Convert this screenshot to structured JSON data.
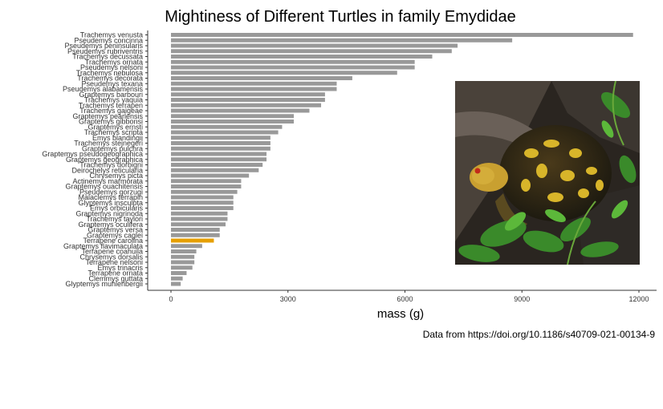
{
  "chart_data": {
    "type": "bar",
    "orientation": "horizontal",
    "title": "Mightiness of Different Turtles in family Emydidae",
    "xlabel": "mass (g)",
    "ylabel": "",
    "caption": "Data from https://doi.org/10.1186/s40709-021-00134-9",
    "xlim": [
      0,
      12400
    ],
    "xticks": [
      0,
      3000,
      6000,
      9000,
      12000
    ],
    "grid": false,
    "legend": "none",
    "bar_color": "#999999",
    "highlight_color": "#E69F00",
    "highlight_category": "Terrapene carolina",
    "inset_photo": "box-turtle-photo",
    "categories": [
      "Trachemys venusta",
      "Pseudemys concinna",
      "Pseudemys peninsularis",
      "Pseudemys rubriventris",
      "Trachemys decussata",
      "Trachemys ornata",
      "Pseudemys nelsoni",
      "Trachemys nebulosa",
      "Trachemys decorata",
      "Pseudemys texana",
      "Pseudemys alabamensis",
      "Graptemys barbouri",
      "Trachemys yaquia",
      "Trachemys terrapen",
      "Trachemys gaigeae",
      "Graptemys pearlensis",
      "Graptemys gibbonsi",
      "Graptemys ernsti",
      "Trachemys scripta",
      "Emys blandingii",
      "Trachemys stejnegeri",
      "Graptemys pulchra",
      "Graptemys pseudogeographica",
      "Graptemys geographica",
      "Trachemys dorbigni",
      "Deirochelys reticularia",
      "Chrysemys picta",
      "Actinemys marmorata",
      "Graptemys ouachitensis",
      "Pseudemys gorzugi",
      "Malaclemys terrapin",
      "Glyptemys insculpta",
      "Emys orbicularis",
      "Graptemys nigrinoda",
      "Trachemys taylori",
      "Graptemys oculifera",
      "Graptemys versa",
      "Graptemys caglei",
      "Terrapene carolina",
      "Graptemys flavimaculata",
      "Terrapene coahuila",
      "Chrysemys dorsalis",
      "Terrapene nelsoni",
      "Emys trinacris",
      "Terrapene ornata",
      "Clemmys guttata",
      "Glyptemys muhlenbergii"
    ],
    "values": [
      11850,
      8750,
      7350,
      7200,
      6700,
      6250,
      6250,
      5800,
      4650,
      4250,
      4250,
      3950,
      3950,
      3850,
      3550,
      3150,
      3150,
      2850,
      2750,
      2550,
      2550,
      2550,
      2450,
      2450,
      2350,
      2250,
      2000,
      1800,
      1800,
      1700,
      1600,
      1600,
      1600,
      1450,
      1450,
      1400,
      1250,
      1250,
      1100,
      800,
      650,
      600,
      600,
      550,
      400,
      300,
      250
    ]
  }
}
